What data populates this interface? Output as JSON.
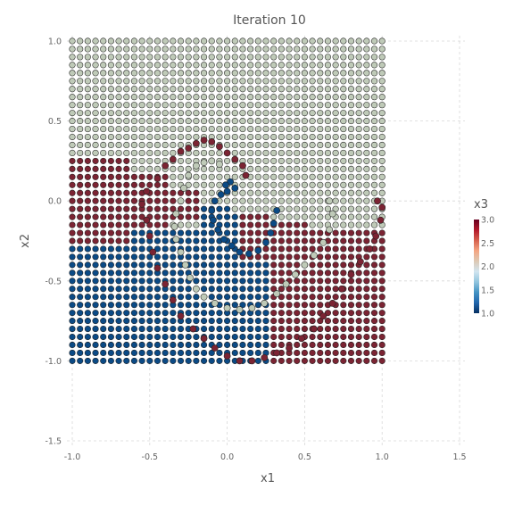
{
  "chart_data": {
    "type": "scatter",
    "title": "Iteration 10",
    "xlabel": "x1",
    "ylabel": "x2",
    "xlim": [
      -1.05,
      1.55
    ],
    "ylim": [
      -1.55,
      1.05
    ],
    "x_ticks": [
      -1.0,
      -0.5,
      0.0,
      0.5,
      1.0,
      1.5
    ],
    "x_tick_labels": [
      "-1.0",
      "-0.5",
      "0.0",
      "0.5",
      "1.0",
      "1.5"
    ],
    "y_ticks": [
      1.0,
      0.5,
      0.0,
      -0.5,
      -1.0,
      -1.5
    ],
    "y_tick_labels": [
      "1.0",
      "0.5",
      "0.0",
      "-0.5",
      "-1.0",
      "-1.5"
    ],
    "grid": true,
    "grid_x": [
      -1.0,
      -0.5,
      0.0,
      0.5,
      1.0,
      1.5
    ],
    "grid_y": [
      1.0,
      0.5,
      0.0,
      -0.5,
      -1.0,
      -1.5
    ],
    "colorbar": {
      "title": "x3",
      "range": [
        1.0,
        3.0
      ],
      "ticks": [
        3.0,
        2.5,
        2.0,
        1.5,
        1.0
      ],
      "tick_labels": [
        "3.0",
        "2.5",
        "2.0",
        "1.5",
        "1.0"
      ],
      "colors": [
        "#053061",
        "#2166ac",
        "#4393c3",
        "#92c5de",
        "#d1e5f0",
        "#ddc9b4",
        "#f4a582",
        "#d6604d",
        "#b2182b",
        "#67001f"
      ]
    },
    "class_colors": {
      "1": "#0b4a85",
      "2": "#bfcab8",
      "3": "#7b2433"
    },
    "grid_points": {
      "description_range": {
        "x": [
          -1.0,
          1.0
        ],
        "y": [
          -1.0,
          1.0
        ]
      },
      "spacing": 0.0345,
      "class_regions": [
        {
          "value": 3,
          "x_range": [
            -1.0,
            -0.35
          ],
          "y_range": [
            -0.25,
            0.3
          ]
        },
        {
          "value": 1,
          "x_range": [
            -1.0,
            0.25
          ],
          "y_range": [
            -1.0,
            -0.25
          ]
        },
        {
          "value": 3,
          "x_range": [
            0.25,
            1.0
          ],
          "y_range": [
            -1.0,
            -0.4
          ]
        },
        {
          "value": 2,
          "x_range": [
            -1.0,
            1.0
          ],
          "y_range": [
            0.3,
            1.0
          ]
        }
      ]
    },
    "spiral_series": [
      {
        "value": 3,
        "points": [
          [
            -0.3,
            0.31
          ],
          [
            -0.25,
            0.33
          ],
          [
            -0.2,
            0.36
          ],
          [
            -0.15,
            0.38
          ],
          [
            -0.1,
            0.37
          ],
          [
            -0.05,
            0.34
          ],
          [
            0.0,
            0.3
          ],
          [
            0.05,
            0.26
          ],
          [
            0.1,
            0.22
          ],
          [
            0.12,
            0.16
          ],
          [
            -0.35,
            0.26
          ],
          [
            -0.4,
            0.22
          ],
          [
            -0.45,
            0.14
          ],
          [
            -0.52,
            0.06
          ],
          [
            -0.55,
            -0.02
          ],
          [
            -0.52,
            -0.12
          ],
          [
            -0.5,
            -0.22
          ],
          [
            -0.48,
            -0.32
          ],
          [
            -0.45,
            -0.42
          ],
          [
            -0.4,
            -0.52
          ],
          [
            -0.35,
            -0.62
          ],
          [
            -0.3,
            -0.72
          ],
          [
            -0.22,
            -0.8
          ],
          [
            -0.15,
            -0.86
          ],
          [
            -0.08,
            -0.92
          ],
          [
            0.0,
            -0.97
          ],
          [
            0.08,
            -1.0
          ],
          [
            0.16,
            -1.0
          ],
          [
            0.24,
            -0.98
          ],
          [
            0.32,
            -0.95
          ],
          [
            0.4,
            -0.92
          ],
          [
            0.48,
            -0.86
          ],
          [
            0.56,
            -0.8
          ],
          [
            0.62,
            -0.72
          ],
          [
            0.68,
            -0.64
          ],
          [
            0.74,
            -0.55
          ],
          [
            0.8,
            -0.46
          ],
          [
            0.86,
            -0.38
          ],
          [
            0.92,
            -0.3
          ],
          [
            0.96,
            -0.22
          ],
          [
            0.99,
            -0.12
          ],
          [
            1.0,
            -0.04
          ],
          [
            0.97,
            0.0
          ]
        ]
      },
      {
        "value": 1,
        "points": [
          [
            0.0,
            0.06
          ],
          [
            -0.04,
            0.04
          ],
          [
            -0.08,
            0.0
          ],
          [
            -0.1,
            -0.06
          ],
          [
            -0.09,
            -0.12
          ],
          [
            -0.06,
            -0.18
          ],
          [
            -0.02,
            -0.24
          ],
          [
            0.03,
            -0.28
          ],
          [
            0.08,
            -0.32
          ],
          [
            0.14,
            -0.33
          ],
          [
            0.2,
            -0.31
          ],
          [
            0.25,
            -0.26
          ],
          [
            0.28,
            -0.2
          ],
          [
            0.3,
            -0.14
          ],
          [
            0.32,
            -0.06
          ],
          [
            0.02,
            0.12
          ],
          [
            0.05,
            0.08
          ],
          [
            -0.01,
            0.1
          ]
        ]
      },
      {
        "value": 2,
        "points": [
          [
            -0.2,
            0.22
          ],
          [
            -0.15,
            0.24
          ],
          [
            -0.1,
            0.25
          ],
          [
            -0.05,
            0.23
          ],
          [
            -0.25,
            0.16
          ],
          [
            -0.28,
            0.08
          ],
          [
            -0.3,
            0.0
          ],
          [
            -0.33,
            -0.08
          ],
          [
            -0.34,
            -0.16
          ],
          [
            -0.33,
            -0.24
          ],
          [
            -0.3,
            -0.32
          ],
          [
            -0.27,
            -0.4
          ],
          [
            -0.24,
            -0.48
          ],
          [
            -0.2,
            -0.55
          ],
          [
            -0.15,
            -0.6
          ],
          [
            -0.08,
            -0.64
          ],
          [
            0.0,
            -0.67
          ],
          [
            0.08,
            -0.68
          ],
          [
            0.16,
            -0.67
          ],
          [
            0.24,
            -0.64
          ],
          [
            0.32,
            -0.58
          ],
          [
            0.38,
            -0.52
          ],
          [
            0.44,
            -0.46
          ],
          [
            0.5,
            -0.4
          ],
          [
            0.56,
            -0.34
          ],
          [
            0.62,
            -0.26
          ],
          [
            0.66,
            -0.18
          ],
          [
            0.68,
            -0.08
          ],
          [
            0.66,
            0.0
          ]
        ]
      }
    ]
  }
}
